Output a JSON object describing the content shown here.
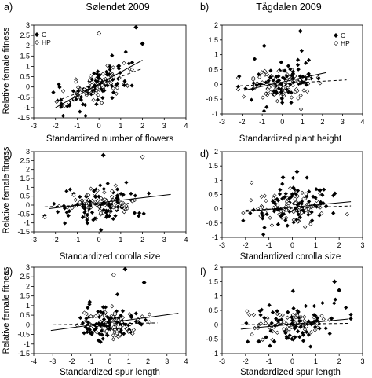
{
  "chart_data": [
    {
      "type": "scatter",
      "panel_label": "a)",
      "title": "Sølendet 2009",
      "xlabel": "Standardized number of flowers",
      "ylabel": "Relative female fitness",
      "xlim": [
        -3,
        4
      ],
      "ylim": [
        -1.5,
        3.0
      ],
      "xticks": [
        "-3",
        "-2",
        "-1",
        "0",
        "1",
        "2",
        "3",
        "4"
      ],
      "yticks": [
        "-1.5",
        "-1",
        "-0.5",
        "0",
        "0.5",
        "1",
        "1.5",
        "2",
        "2.5",
        "3"
      ],
      "legend": {
        "position": "top-left",
        "entries": [
          "C",
          "HP"
        ]
      },
      "series": [
        {
          "name": "C",
          "marker": "filled-diamond",
          "line": "solid",
          "trend": {
            "x": [
              -2.0,
              2.0
            ],
            "y": [
              -1.0,
              1.3
            ]
          }
        },
        {
          "name": "HP",
          "marker": "open-diamond",
          "line": "dashed",
          "trend": {
            "x": [
              -2.0,
              2.0
            ],
            "y": [
              -0.7,
              0.9
            ]
          }
        }
      ],
      "outliers": [
        {
          "series": "HP",
          "x": 0.0,
          "y": 2.6
        },
        {
          "series": "C",
          "x": 1.7,
          "y": 2.9
        },
        {
          "series": "C",
          "x": 2.0,
          "y": 2.1
        }
      ],
      "n_points": 160,
      "spread": {
        "x_sd": 0.85,
        "y_sd": 0.45,
        "x_range": [
          -2.1,
          2.4
        ]
      }
    },
    {
      "type": "scatter",
      "panel_label": "b)",
      "title": "Tågdalen 2009",
      "xlabel": "Standardized plant height",
      "ylabel": "",
      "xlim": [
        -3,
        4
      ],
      "ylim": [
        -1,
        2
      ],
      "xticks": [
        "-3",
        "-2",
        "-1",
        "0",
        "1",
        "2",
        "3",
        "4"
      ],
      "yticks": [
        "-1",
        "-0.5",
        "0",
        "0.5",
        "1",
        "1.5",
        "2"
      ],
      "legend": {
        "position": "top-right",
        "entries": [
          "C",
          "HP"
        ]
      },
      "series": [
        {
          "name": "C",
          "marker": "filled-diamond",
          "line": "solid",
          "trend": {
            "x": [
              -1.9,
              2.2
            ],
            "y": [
              -0.2,
              0.4
            ]
          }
        },
        {
          "name": "HP",
          "marker": "open-diamond",
          "line": "dashed",
          "trend": {
            "x": [
              -2.1,
              3.2
            ],
            "y": [
              -0.05,
              0.15
            ]
          }
        }
      ],
      "outliers": [
        {
          "series": "C",
          "x": 0.9,
          "y": 1.8
        },
        {
          "series": "C",
          "x": -0.9,
          "y": 1.3
        }
      ],
      "n_points": 150,
      "spread": {
        "x_sd": 0.85,
        "y_sd": 0.35,
        "x_range": [
          -2.2,
          3.1
        ]
      }
    },
    {
      "type": "scatter",
      "panel_label": "c)",
      "title": "",
      "xlabel": "Standardized corolla size",
      "ylabel": "Relative female fitness",
      "xlim": [
        -3,
        4
      ],
      "ylim": [
        -1.5,
        3.0
      ],
      "xticks": [
        "-3",
        "-2",
        "-1",
        "0",
        "1",
        "2",
        "3",
        "4"
      ],
      "yticks": [
        "-1.5",
        "-1",
        "-0.5",
        "0",
        "0.5",
        "1",
        "1.5",
        "2",
        "2.5",
        "3"
      ],
      "legend": null,
      "series": [
        {
          "name": "C",
          "marker": "filled-diamond",
          "line": "solid",
          "trend": {
            "x": [
              -2.3,
              3.3
            ],
            "y": [
              -0.2,
              0.6
            ]
          }
        },
        {
          "name": "HP",
          "marker": "open-diamond",
          "line": "dashed",
          "trend": {
            "x": [
              -2.5,
              1.4
            ],
            "y": [
              -0.1,
              0.1
            ]
          }
        }
      ],
      "outliers": [
        {
          "series": "C",
          "x": 0.2,
          "y": 2.8
        },
        {
          "series": "HP",
          "x": 2.0,
          "y": 2.7
        }
      ],
      "n_points": 170,
      "spread": {
        "x_sd": 0.95,
        "y_sd": 0.5,
        "x_range": [
          -2.5,
          3.1
        ]
      }
    },
    {
      "type": "scatter",
      "panel_label": "d)",
      "title": "",
      "xlabel": "Standardized corolla size",
      "ylabel": "",
      "xlim": [
        -3,
        3
      ],
      "ylim": [
        -1,
        2
      ],
      "xticks": [
        "-3",
        "-2",
        "-1",
        "0",
        "1",
        "2",
        "3"
      ],
      "yticks": [
        "-1",
        "-0.5",
        "0",
        "0.5",
        "1",
        "1.5",
        "2"
      ],
      "legend": null,
      "series": [
        {
          "name": "C",
          "marker": "filled-diamond",
          "line": "solid",
          "trend": {
            "x": [
              -2.0,
              2.5
            ],
            "y": [
              -0.1,
              0.25
            ]
          }
        },
        {
          "name": "HP",
          "marker": "open-diamond",
          "line": "dashed",
          "trend": {
            "x": [
              -2.0,
              2.5
            ],
            "y": [
              -0.05,
              0.1
            ]
          }
        }
      ],
      "outliers": [
        {
          "series": "C",
          "x": 0.2,
          "y": 1.3
        },
        {
          "series": "C",
          "x": -0.4,
          "y": 1.1
        }
      ],
      "n_points": 160,
      "spread": {
        "x_sd": 0.9,
        "y_sd": 0.35,
        "x_range": [
          -2.1,
          2.5
        ]
      }
    },
    {
      "type": "scatter",
      "panel_label": "e)",
      "title": "",
      "xlabel": "Standardized spur length",
      "ylabel": "Relative female fitness",
      "xlim": [
        -4,
        4
      ],
      "ylim": [
        -1.5,
        3.0
      ],
      "xticks": [
        "-4",
        "-3",
        "-2",
        "-1",
        "0",
        "1",
        "2",
        "3",
        "4"
      ],
      "yticks": [
        "-1.5",
        "-1",
        "-0.5",
        "0",
        "0.5",
        "1",
        "1.5",
        "2",
        "2.5",
        "3"
      ],
      "legend": null,
      "series": [
        {
          "name": "C",
          "marker": "filled-diamond",
          "line": "solid",
          "trend": {
            "x": [
              -3.1,
              3.6
            ],
            "y": [
              -0.3,
              0.6
            ]
          }
        },
        {
          "name": "HP",
          "marker": "open-diamond",
          "line": "dashed",
          "trend": {
            "x": [
              -3.0,
              2.5
            ],
            "y": [
              0.0,
              0.1
            ]
          }
        }
      ],
      "outliers": [
        {
          "series": "HP",
          "x": 0.2,
          "y": 2.6
        },
        {
          "series": "C",
          "x": 0.8,
          "y": 2.9
        },
        {
          "series": "C",
          "x": 1.8,
          "y": 2.2
        }
      ],
      "n_points": 170,
      "spread": {
        "x_sd": 0.8,
        "y_sd": 0.4,
        "x_range": [
          -3.2,
          3.6
        ]
      }
    },
    {
      "type": "scatter",
      "panel_label": "f)",
      "title": "",
      "xlabel": "Standardized spur length",
      "ylabel": "",
      "xlim": [
        -3,
        3
      ],
      "ylim": [
        -1,
        2
      ],
      "xticks": [
        "-3",
        "-2",
        "-1",
        "0",
        "1",
        "2",
        "3"
      ],
      "yticks": [
        "-1",
        "-0.5",
        "0",
        "0.5",
        "1",
        "1.5",
        "2"
      ],
      "legend": null,
      "series": [
        {
          "name": "C",
          "marker": "filled-diamond",
          "line": "solid",
          "trend": {
            "x": [
              -2.2,
              2.4
            ],
            "y": [
              -0.15,
              0.2
            ]
          }
        },
        {
          "name": "HP",
          "marker": "open-diamond",
          "line": "dashed",
          "trend": {
            "x": [
              -2.2,
              2.4
            ],
            "y": [
              0.0,
              0.05
            ]
          }
        }
      ],
      "outliers": [
        {
          "series": "C",
          "x": 1.8,
          "y": 1.5
        },
        {
          "series": "C",
          "x": 2.0,
          "y": 1.2
        }
      ],
      "n_points": 150,
      "spread": {
        "x_sd": 0.85,
        "y_sd": 0.35,
        "x_range": [
          -2.2,
          2.5
        ]
      }
    }
  ]
}
